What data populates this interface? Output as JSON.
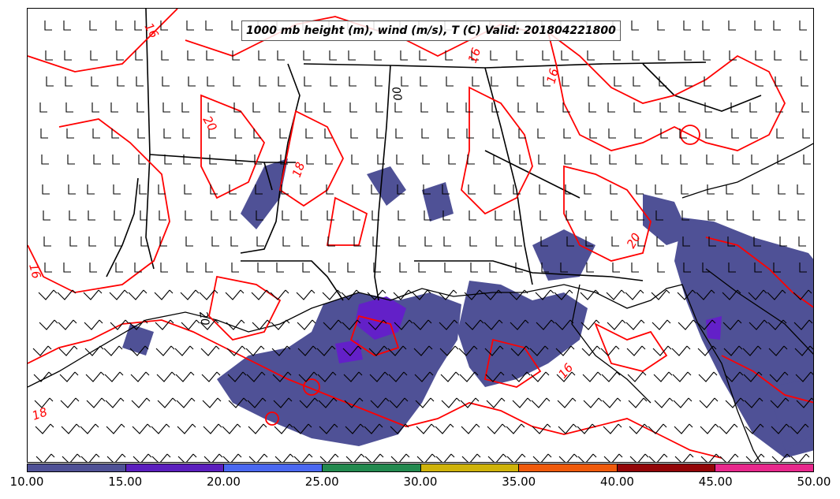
{
  "title": "1000 mb height (m), wind (m/s), T (C) Valid: 201804221800",
  "colors": {
    "temperature_contour": "#ff0000",
    "borders": "#000000",
    "precip_fill": "#4f5196",
    "precip_fill_heavy": "#6320c8"
  },
  "colorbar": {
    "colors": [
      "#4f5196",
      "#5b1fbe",
      "#4a68f0",
      "#238a4f",
      "#cfb30a",
      "#ef5a0b",
      "#930508",
      "#e8288c"
    ],
    "tick_labels": [
      "10.00",
      "15.00",
      "20.00",
      "25.00",
      "30.00",
      "35.00",
      "40.00",
      "45.00",
      "50.00"
    ]
  },
  "contour_labels": {
    "temperature": [
      "16",
      "16",
      "16",
      "18",
      "16",
      "18",
      "20",
      "20",
      "16"
    ],
    "height": [
      "00",
      "20"
    ]
  }
}
